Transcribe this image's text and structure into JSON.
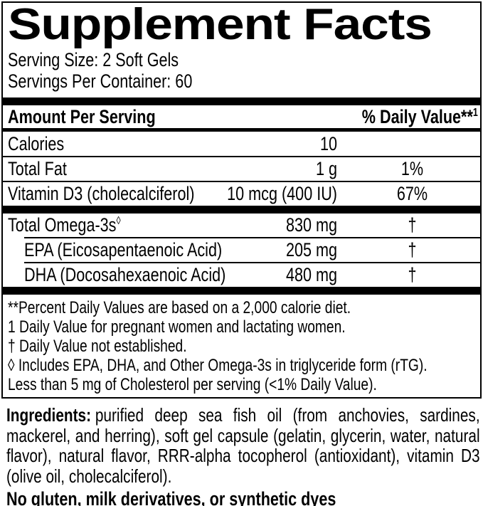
{
  "panel": {
    "title": "Supplement Facts",
    "serving_size": "Serving Size: 2 Soft Gels",
    "servings_per_container": "Servings Per Container: 60",
    "header": {
      "amount_label": "Amount Per Serving",
      "dv_label": "% Daily Value**",
      "dv_superscript": "1"
    },
    "rows": [
      {
        "name": "Calories",
        "amount": "10",
        "dv": ""
      },
      {
        "name": "Total Fat",
        "amount": "1 g",
        "dv": "1%"
      },
      {
        "name": "Vitamin D3 (cholecalciferol)",
        "amount": "10 mcg (400 IU)",
        "dv": "67%"
      }
    ],
    "omega_rows": [
      {
        "name": "Total Omega-3s",
        "name_superscript": "◊",
        "amount": "830 mg",
        "dv": "†"
      },
      {
        "name": "EPA (Eicosapentaenoic Acid)",
        "amount": "205 mg",
        "dv": "†"
      },
      {
        "name": "DHA (Docosahexaenoic Acid)",
        "amount": "480 mg",
        "dv": "†"
      }
    ],
    "footnotes": [
      "**Percent Daily Values are based on a 2,000 calorie diet.",
      "1 Daily Value for pregnant women and lactating women.",
      "† Daily Value not established.",
      "◊ Includes EPA, DHA, and Other Omega-3s in triglyceride form (rTG).",
      "Less than 5 mg of Cholesterol per serving (<1% Daily Value)."
    ]
  },
  "ingredients": {
    "label": "Ingredients:",
    "text": "purified deep sea fish oil (from anchovies, sardines, mackerel, and herring), soft gel capsule (gelatin, glycerin, water, natural flavor), natural flavor, RRR-alpha tocopherol (antioxidant), vitamin D3 (olive oil, cholecalciferol).",
    "allergen_statement": "No gluten, milk derivatives, or synthetic dyes"
  },
  "colors": {
    "text": "#000000",
    "background": "#ffffff"
  }
}
